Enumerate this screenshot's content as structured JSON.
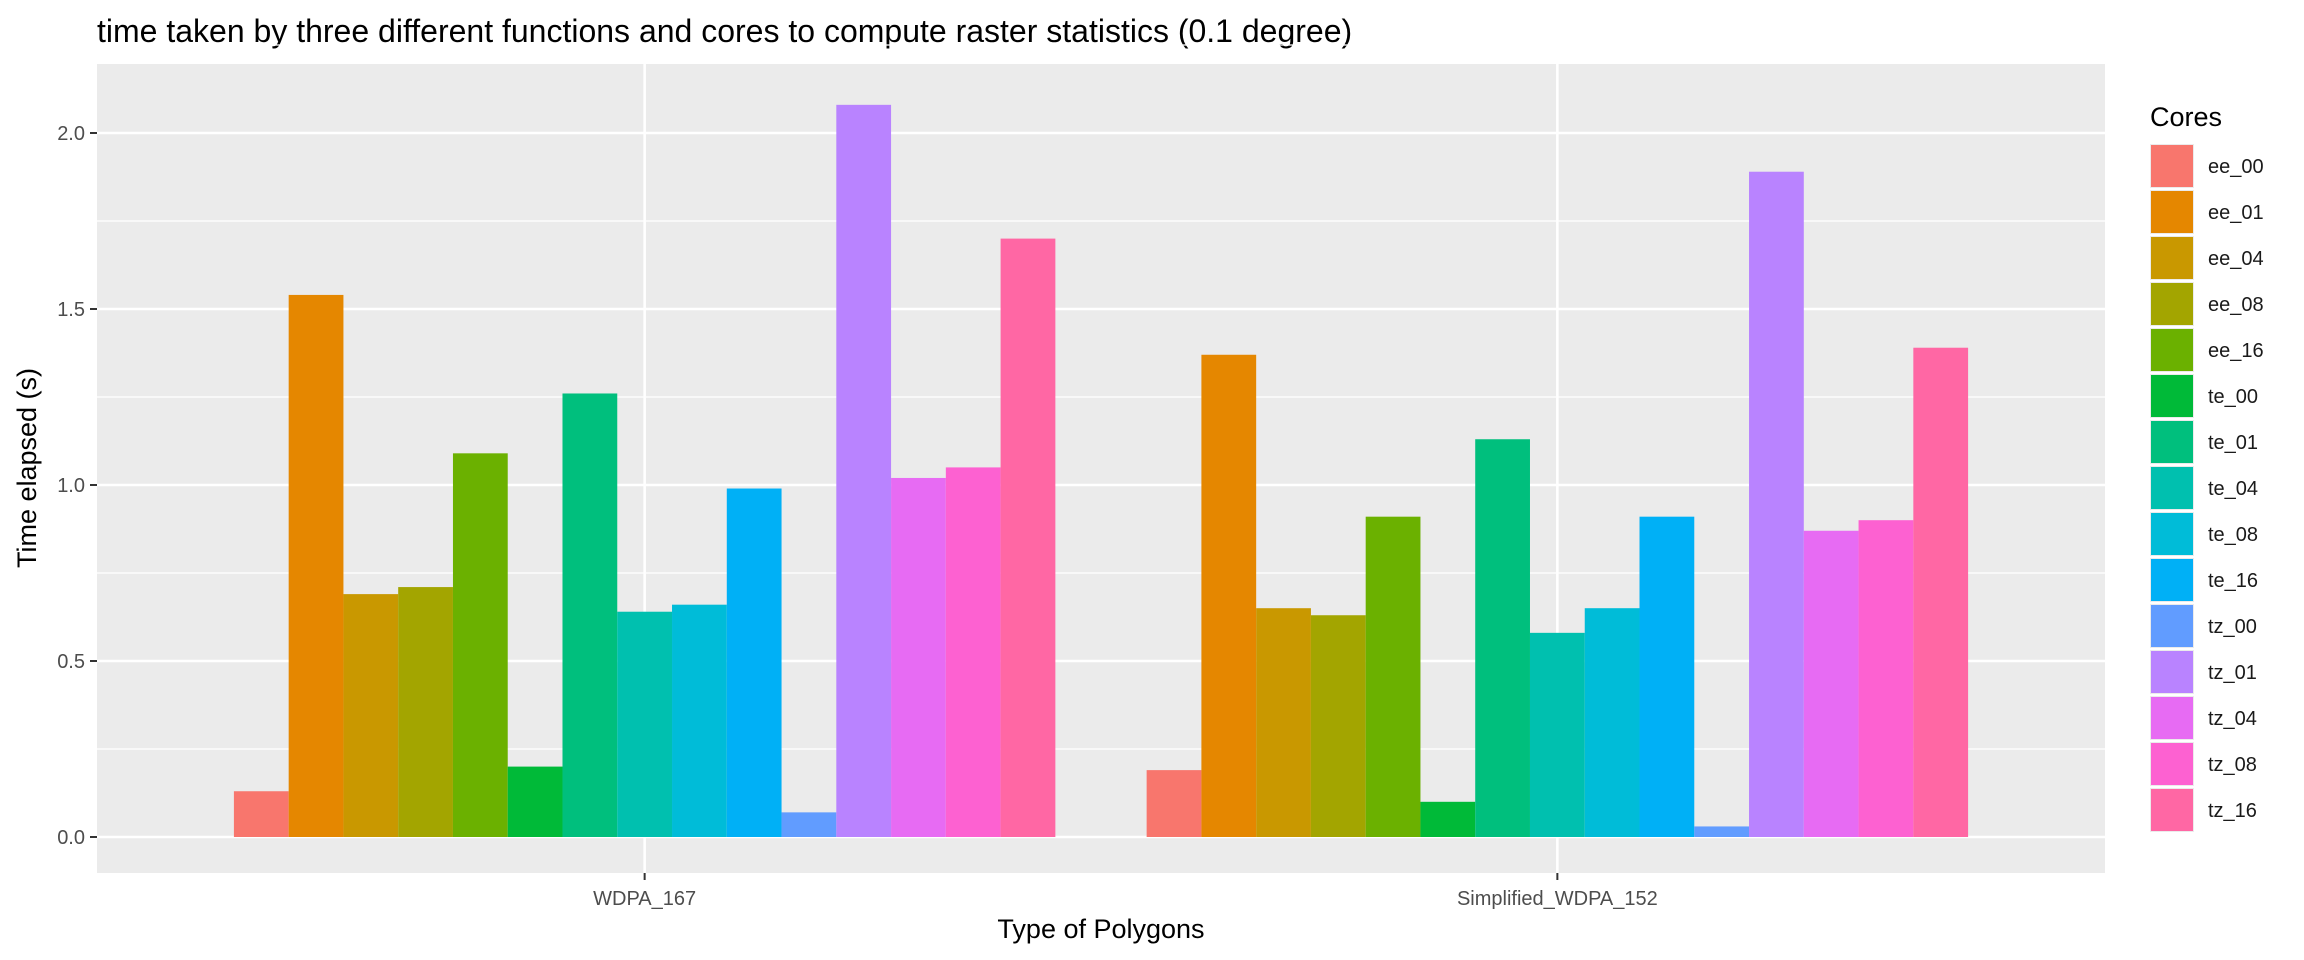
{
  "chart_data": {
    "type": "bar",
    "title": "time taken by three different functions and cores to compute raster statistics (0.1 degree)",
    "xlabel": "Type of Polygons",
    "ylabel": "Time elapsed (s)",
    "ylim": [
      -0.105,
      2.2
    ],
    "yticks": [
      0.0,
      0.5,
      1.0,
      1.5,
      2.0
    ],
    "ytick_labels": [
      "0.0",
      "0.5",
      "1.0",
      "1.5",
      "2.0"
    ],
    "categories": [
      "WDPA_167",
      "Simplified_WDPA_152"
    ],
    "legend_title": "Cores",
    "legend_position": "right",
    "grid": true,
    "series": [
      {
        "name": "ee_00",
        "color": "#F8766D",
        "values": [
          0.13,
          0.19
        ]
      },
      {
        "name": "ee_01",
        "color": "#E58700",
        "values": [
          1.54,
          1.37
        ]
      },
      {
        "name": "ee_04",
        "color": "#C99800",
        "values": [
          0.69,
          0.65
        ]
      },
      {
        "name": "ee_08",
        "color": "#A3A500",
        "values": [
          0.71,
          0.63
        ]
      },
      {
        "name": "ee_16",
        "color": "#6BB100",
        "values": [
          1.09,
          0.91
        ]
      },
      {
        "name": "te_00",
        "color": "#00BA38",
        "values": [
          0.2,
          0.1
        ]
      },
      {
        "name": "te_01",
        "color": "#00BF7D",
        "values": [
          1.26,
          1.13
        ]
      },
      {
        "name": "te_04",
        "color": "#00C0AF",
        "values": [
          0.64,
          0.58
        ]
      },
      {
        "name": "te_08",
        "color": "#00BCD8",
        "values": [
          0.66,
          0.65
        ]
      },
      {
        "name": "te_16",
        "color": "#00B0F6",
        "values": [
          0.99,
          0.91
        ]
      },
      {
        "name": "tz_00",
        "color": "#619CFF",
        "values": [
          0.07,
          0.03
        ]
      },
      {
        "name": "tz_01",
        "color": "#B983FF",
        "values": [
          2.08,
          1.89
        ]
      },
      {
        "name": "tz_04",
        "color": "#E76BF3",
        "values": [
          1.02,
          0.87
        ]
      },
      {
        "name": "tz_08",
        "color": "#FD61D1",
        "values": [
          1.05,
          0.9
        ]
      },
      {
        "name": "tz_16",
        "color": "#FF67A4",
        "values": [
          1.7,
          1.39
        ]
      }
    ],
    "colors": {
      "panel_background": "#EBEBEB",
      "grid_major": "#FFFFFF"
    }
  }
}
